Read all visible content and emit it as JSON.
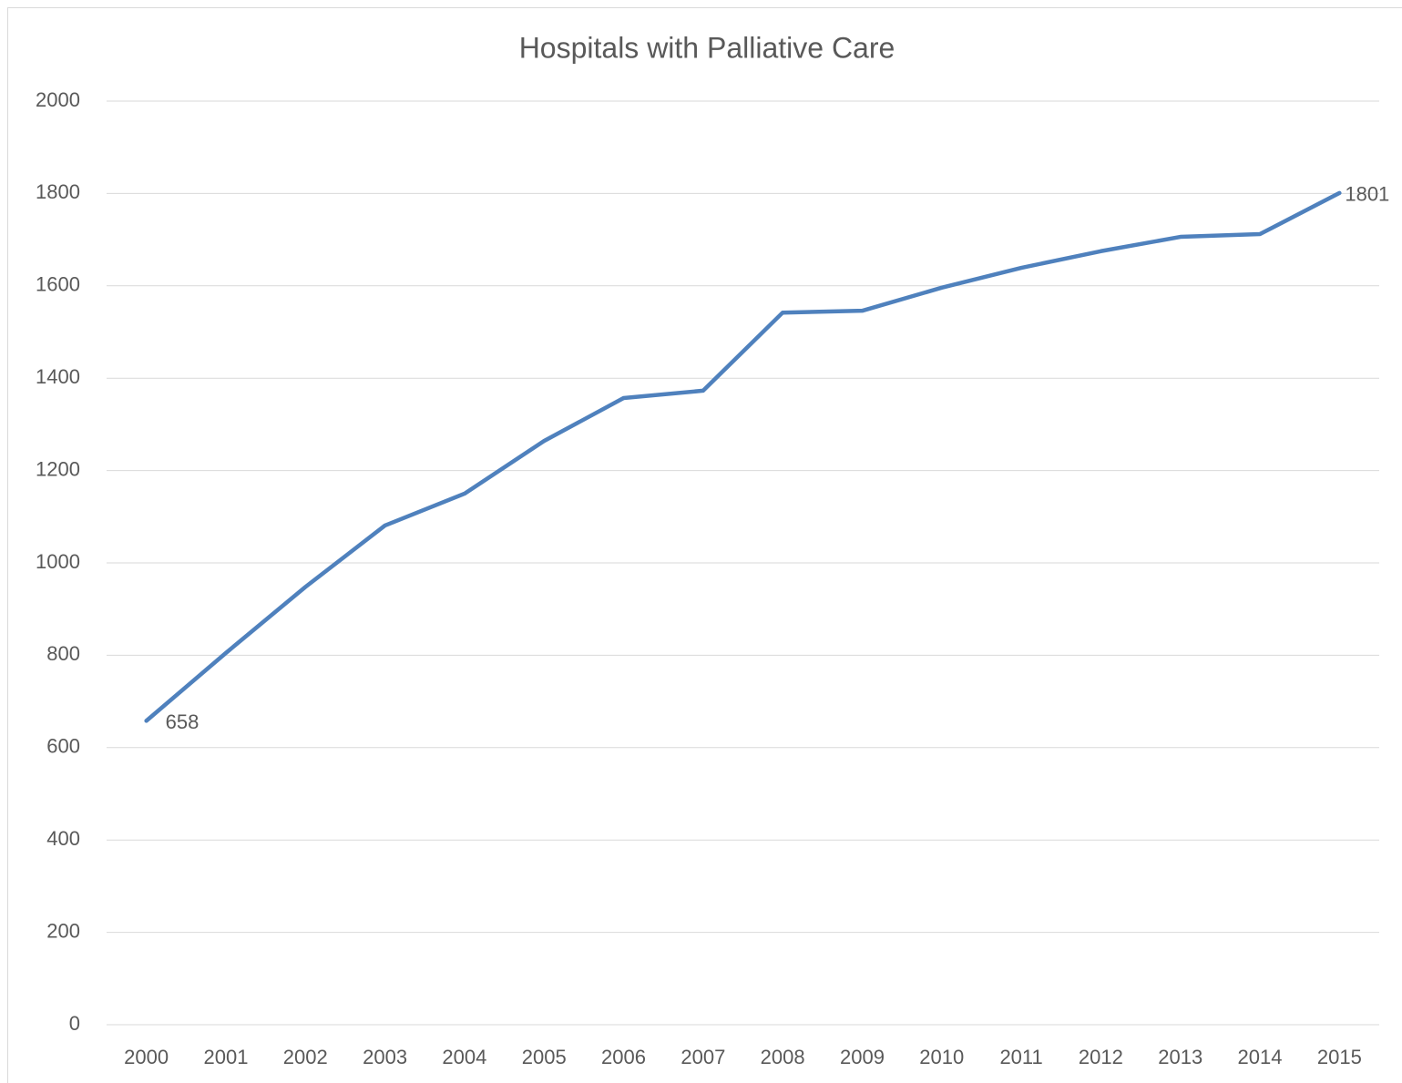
{
  "chart_data": {
    "type": "line",
    "title": "Hospitals with Palliative Care",
    "categories": [
      "2000",
      "2001",
      "2002",
      "2003",
      "2004",
      "2005",
      "2006",
      "2007",
      "2008",
      "2009",
      "2010",
      "2011",
      "2012",
      "2013",
      "2014",
      "2015"
    ],
    "series": [
      {
        "name": "Hospitals",
        "color": "#4f81bd",
        "values": [
          658,
          805,
          948,
          1081,
          1150,
          1264,
          1357,
          1373,
          1542,
          1546,
          1596,
          1639,
          1675,
          1706,
          1712,
          1801
        ],
        "value_labels": [
          "658",
          null,
          null,
          null,
          null,
          null,
          null,
          null,
          null,
          null,
          null,
          null,
          null,
          null,
          null,
          "1801"
        ]
      }
    ],
    "ylim": [
      0,
      2000
    ],
    "yticks": [
      0,
      200,
      400,
      600,
      800,
      1000,
      1200,
      1400,
      1600,
      1800,
      2000
    ],
    "grid": true
  }
}
